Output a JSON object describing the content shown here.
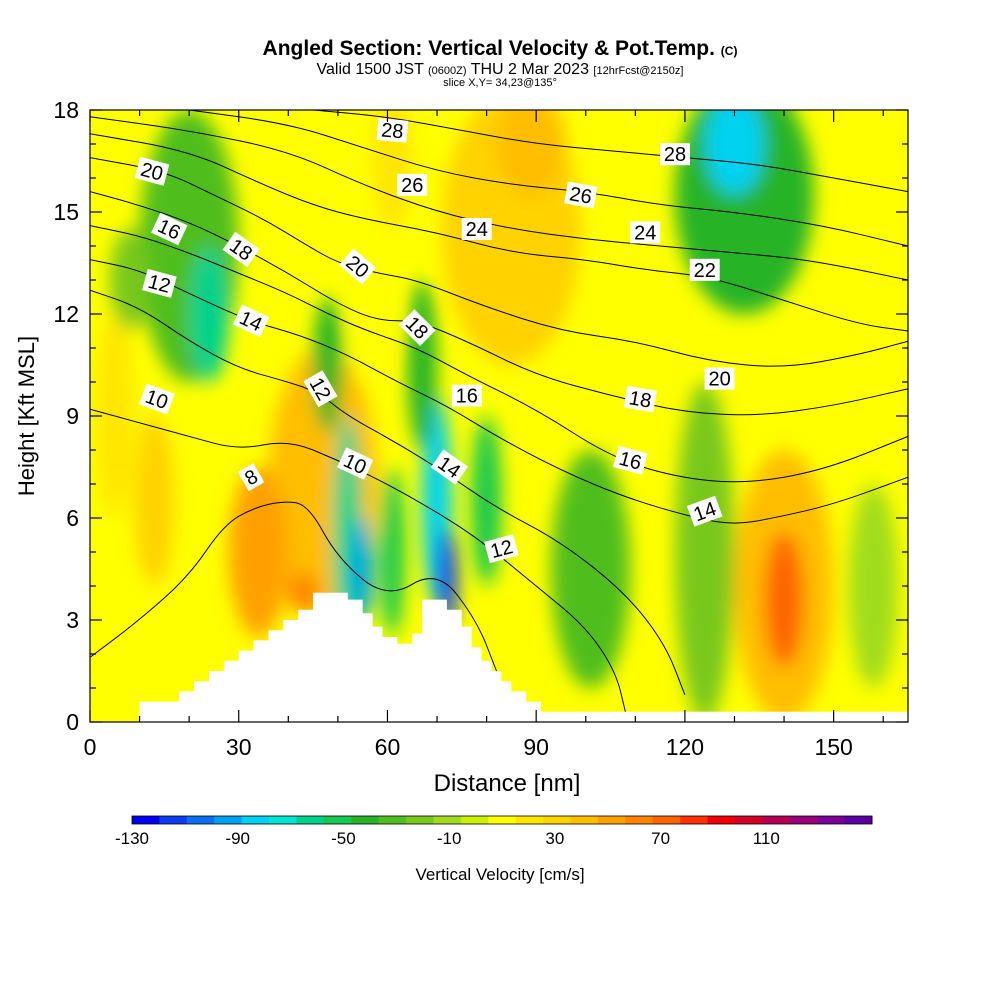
{
  "header": {
    "title_main": "Angled Section: Vertical Velocity & Pot.Temp.",
    "title_copyright": "(C)",
    "valid_prefix": "Valid 1500 JST",
    "valid_utc": "(0600Z)",
    "valid_date": "THU 2 Mar 2023",
    "valid_fcst": "[12hrFcst@2150z]",
    "slice_info": "slice X,Y= 34,23@135°"
  },
  "chart_data": {
    "type": "heatmap",
    "title": "Angled Section: Vertical Velocity & Pot.Temp.",
    "xlabel": "Distance [nm]",
    "ylabel": "Height [Kft MSL]",
    "xlim": [
      0,
      165
    ],
    "ylim": [
      0,
      18
    ],
    "x_ticks": [
      0,
      30,
      60,
      90,
      120,
      150
    ],
    "x_tick_labels": [
      "0",
      "30",
      "60",
      "90",
      "120",
      "150"
    ],
    "y_ticks": [
      0,
      3,
      6,
      9,
      12,
      15,
      18
    ],
    "y_tick_labels": [
      "0",
      "3",
      "6",
      "9",
      "12",
      "15",
      "18"
    ],
    "colorbar": {
      "label": "Vertical Velocity [cm/s]",
      "tick_labels": [
        "-130",
        "-90",
        "-50",
        "-10",
        "30",
        "70",
        "110"
      ],
      "tick_values": [
        -130,
        -90,
        -50,
        -10,
        30,
        70,
        110
      ],
      "range": [
        -130,
        150
      ],
      "colors": [
        "#0000f0",
        "#0a3cf0",
        "#0a6ef0",
        "#00a0f0",
        "#00d2f0",
        "#00e6d2",
        "#00d28c",
        "#14c850",
        "#28b428",
        "#50be1e",
        "#78c81e",
        "#a0dc1e",
        "#c8f000",
        "#ffff00",
        "#ffe600",
        "#ffd200",
        "#ffbe00",
        "#ffa000",
        "#ff8200",
        "#ff6400",
        "#ff3200",
        "#f00000",
        "#d20028",
        "#b40050",
        "#960078",
        "#780096",
        "#5a00a0"
      ]
    },
    "terrain_nm_kft": [
      [
        10,
        0.6
      ],
      [
        18,
        0.6
      ],
      [
        18,
        0.9
      ],
      [
        21,
        0.9
      ],
      [
        21,
        1.2
      ],
      [
        24,
        1.2
      ],
      [
        24,
        1.5
      ],
      [
        27,
        1.5
      ],
      [
        27,
        1.8
      ],
      [
        30,
        1.8
      ],
      [
        30,
        2.1
      ],
      [
        33,
        2.1
      ],
      [
        33,
        2.4
      ],
      [
        36,
        2.4
      ],
      [
        36,
        2.7
      ],
      [
        39,
        2.7
      ],
      [
        39,
        3.0
      ],
      [
        42,
        3.0
      ],
      [
        42,
        3.3
      ],
      [
        45,
        3.3
      ],
      [
        45,
        3.8
      ],
      [
        52,
        3.8
      ],
      [
        52,
        3.6
      ],
      [
        55,
        3.6
      ],
      [
        55,
        3.2
      ],
      [
        57,
        3.2
      ],
      [
        57,
        2.8
      ],
      [
        59,
        2.8
      ],
      [
        59,
        2.5
      ],
      [
        62,
        2.5
      ],
      [
        62,
        2.3
      ],
      [
        65,
        2.3
      ],
      [
        65,
        2.6
      ],
      [
        67,
        2.6
      ],
      [
        67,
        3.6
      ],
      [
        72,
        3.6
      ],
      [
        72,
        3.3
      ],
      [
        75,
        3.3
      ],
      [
        75,
        2.8
      ],
      [
        77,
        2.8
      ],
      [
        77,
        2.2
      ],
      [
        79,
        2.2
      ],
      [
        79,
        1.8
      ],
      [
        81,
        1.8
      ],
      [
        81,
        1.5
      ],
      [
        83,
        1.5
      ],
      [
        83,
        1.2
      ],
      [
        85,
        1.2
      ],
      [
        85,
        0.9
      ],
      [
        88,
        0.9
      ],
      [
        88,
        0.6
      ],
      [
        91,
        0.6
      ],
      [
        91,
        0.3
      ],
      [
        165,
        0.3
      ]
    ],
    "velocity_cells": [
      {
        "x": 47,
        "y": 7.0,
        "rx": 11,
        "ry": 4.0,
        "value": 40
      },
      {
        "x": 34,
        "y": 5.0,
        "rx": 6,
        "ry": 2.5,
        "value": 50
      },
      {
        "x": 13,
        "y": 6.5,
        "rx": 4,
        "ry": 2.5,
        "value": 30
      },
      {
        "x": 20,
        "y": 14.0,
        "rx": 10,
        "ry": 4.0,
        "value": -30
      },
      {
        "x": 24,
        "y": 12.0,
        "rx": 4,
        "ry": 2.0,
        "value": -60
      },
      {
        "x": 8,
        "y": 13.0,
        "rx": 4,
        "ry": 1.5,
        "value": -20
      },
      {
        "x": 48,
        "y": 10.5,
        "rx": 3,
        "ry": 2.0,
        "value": -40
      },
      {
        "x": 52,
        "y": 5.5,
        "rx": 3,
        "ry": 3.5,
        "value": -60
      },
      {
        "x": 55,
        "y": 4.5,
        "rx": 2,
        "ry": 1.5,
        "value": -90
      },
      {
        "x": 61,
        "y": 5.0,
        "rx": 2.5,
        "ry": 2.5,
        "value": -50
      },
      {
        "x": 70,
        "y": 6.5,
        "rx": 3,
        "ry": 3.0,
        "value": -80
      },
      {
        "x": 72,
        "y": 4.2,
        "rx": 2,
        "ry": 1.5,
        "value": -110
      },
      {
        "x": 80,
        "y": 6.5,
        "rx": 3,
        "ry": 2.5,
        "value": -50
      },
      {
        "x": 67,
        "y": 10.5,
        "rx": 3,
        "ry": 2.5,
        "value": -40
      },
      {
        "x": 61,
        "y": 16.5,
        "rx": 4,
        "ry": 2.0,
        "value": 20
      },
      {
        "x": 57,
        "y": 12.0,
        "rx": 4,
        "ry": 2.0,
        "value": 10
      },
      {
        "x": 85,
        "y": 14.5,
        "rx": 14,
        "ry": 4.0,
        "value": 30
      },
      {
        "x": 89,
        "y": 17.0,
        "rx": 7,
        "ry": 1.5,
        "value": 40
      },
      {
        "x": 101,
        "y": 4.5,
        "rx": 8,
        "ry": 3.5,
        "value": -30
      },
      {
        "x": 124,
        "y": 5.0,
        "rx": 6,
        "ry": 5.0,
        "value": -20
      },
      {
        "x": 132,
        "y": 15.5,
        "rx": 14,
        "ry": 3.5,
        "value": -40
      },
      {
        "x": 130,
        "y": 17.0,
        "rx": 6,
        "ry": 1.5,
        "value": -80
      },
      {
        "x": 140,
        "y": 4.0,
        "rx": 10,
        "ry": 4.0,
        "value": 40
      },
      {
        "x": 140,
        "y": 3.6,
        "rx": 4,
        "ry": 2.0,
        "value": 70
      },
      {
        "x": 158,
        "y": 4.0,
        "rx": 5,
        "ry": 3.0,
        "value": -10
      },
      {
        "x": 160,
        "y": 12.0,
        "rx": 5,
        "ry": 4.0,
        "value": 10
      },
      {
        "x": 5,
        "y": 9.0,
        "rx": 4,
        "ry": 3.0,
        "value": 20
      },
      {
        "x": 43,
        "y": 3.8,
        "rx": 3,
        "ry": 0.6,
        "value": 60
      }
    ],
    "isentropes": [
      {
        "theta": 8,
        "points": [
          [
            0,
            1.9
          ],
          [
            10,
            3.0
          ],
          [
            20,
            4.3
          ],
          [
            27,
            5.8
          ],
          [
            33,
            6.3
          ],
          [
            39,
            6.5
          ],
          [
            44,
            6.4
          ],
          [
            50,
            4.8
          ],
          [
            60,
            3.6
          ],
          [
            70,
            4.5
          ],
          [
            78,
            3.0
          ],
          [
            82,
            1.5
          ]
        ]
      },
      {
        "theta": 10,
        "points": [
          [
            0,
            9.2
          ],
          [
            10,
            8.8
          ],
          [
            20,
            8.4
          ],
          [
            30,
            8.0
          ],
          [
            40,
            8.3
          ],
          [
            50,
            7.7
          ],
          [
            60,
            7.0
          ],
          [
            72,
            6.0
          ],
          [
            80,
            5.2
          ],
          [
            90,
            4.0
          ],
          [
            100,
            2.8
          ],
          [
            106,
            1.5
          ],
          [
            108,
            0.3
          ]
        ]
      },
      {
        "theta": 12,
        "points": [
          [
            0,
            12.7
          ],
          [
            10,
            12.2
          ],
          [
            20,
            11.2
          ],
          [
            30,
            10.4
          ],
          [
            40,
            10.0
          ],
          [
            46,
            9.7
          ],
          [
            52,
            9.0
          ],
          [
            62,
            8.2
          ],
          [
            72,
            7.3
          ],
          [
            82,
            6.3
          ],
          [
            95,
            5.3
          ],
          [
            108,
            3.8
          ],
          [
            116,
            2.3
          ],
          [
            120,
            0.8
          ]
        ]
      },
      {
        "theta": 14,
        "points": [
          [
            0,
            13.6
          ],
          [
            10,
            13.3
          ],
          [
            20,
            12.6
          ],
          [
            32,
            11.8
          ],
          [
            42,
            11.4
          ],
          [
            52,
            10.8
          ],
          [
            62,
            10.0
          ],
          [
            72,
            9.3
          ],
          [
            82,
            8.4
          ],
          [
            95,
            7.4
          ],
          [
            108,
            6.6
          ],
          [
            122,
            6.0
          ],
          [
            130,
            5.8
          ],
          [
            138,
            6.0
          ],
          [
            150,
            6.4
          ],
          [
            165,
            7.2
          ]
        ]
      },
      {
        "theta": 16,
        "points": [
          [
            0,
            14.6
          ],
          [
            10,
            14.3
          ],
          [
            20,
            13.8
          ],
          [
            30,
            13.2
          ],
          [
            40,
            12.6
          ],
          [
            48,
            12.0
          ],
          [
            56,
            11.5
          ],
          [
            66,
            11.0
          ],
          [
            76,
            10.2
          ],
          [
            90,
            9.2
          ],
          [
            105,
            7.8
          ],
          [
            118,
            7.2
          ],
          [
            132,
            7.0
          ],
          [
            148,
            7.4
          ],
          [
            165,
            8.4
          ]
        ]
      },
      {
        "theta": 18,
        "points": [
          [
            0,
            15.6
          ],
          [
            10,
            15.2
          ],
          [
            20,
            14.7
          ],
          [
            30,
            14.0
          ],
          [
            40,
            13.2
          ],
          [
            50,
            12.3
          ],
          [
            58,
            11.8
          ],
          [
            66,
            11.8
          ],
          [
            76,
            11.2
          ],
          [
            90,
            10.2
          ],
          [
            105,
            9.6
          ],
          [
            120,
            9.1
          ],
          [
            135,
            9.0
          ],
          [
            150,
            9.3
          ],
          [
            165,
            9.8
          ]
        ]
      },
      {
        "theta": 20,
        "points": [
          [
            0,
            16.6
          ],
          [
            15,
            16.2
          ],
          [
            25,
            15.5
          ],
          [
            35,
            14.8
          ],
          [
            44,
            14.0
          ],
          [
            50,
            13.5
          ],
          [
            58,
            13.2
          ],
          [
            66,
            13.0
          ],
          [
            80,
            12.2
          ],
          [
            95,
            11.5
          ],
          [
            110,
            11.2
          ],
          [
            125,
            10.6
          ],
          [
            140,
            10.4
          ],
          [
            155,
            10.8
          ],
          [
            165,
            11.2
          ]
        ]
      },
      {
        "theta": 22,
        "points": [
          [
            0,
            17.3
          ],
          [
            20,
            16.8
          ],
          [
            35,
            15.8
          ],
          [
            45,
            15.2
          ],
          [
            55,
            14.8
          ],
          [
            70,
            14.4
          ],
          [
            85,
            13.8
          ],
          [
            100,
            13.6
          ],
          [
            112,
            13.3
          ],
          [
            125,
            13.1
          ],
          [
            140,
            12.4
          ],
          [
            155,
            11.7
          ],
          [
            165,
            11.5
          ]
        ]
      },
      {
        "theta": 24,
        "points": [
          [
            0,
            17.8
          ],
          [
            20,
            17.4
          ],
          [
            40,
            16.8
          ],
          [
            55,
            15.8
          ],
          [
            70,
            15.0
          ],
          [
            85,
            14.5
          ],
          [
            100,
            14.2
          ],
          [
            115,
            14.0
          ],
          [
            130,
            13.8
          ],
          [
            145,
            13.6
          ],
          [
            165,
            13.0
          ]
        ]
      },
      {
        "theta": 26,
        "points": [
          [
            20,
            18.0
          ],
          [
            40,
            17.6
          ],
          [
            55,
            16.9
          ],
          [
            70,
            16.2
          ],
          [
            85,
            15.8
          ],
          [
            100,
            15.6
          ],
          [
            115,
            15.2
          ],
          [
            130,
            15.0
          ],
          [
            148,
            14.6
          ],
          [
            165,
            14.0
          ]
        ]
      },
      {
        "theta": 28,
        "points": [
          [
            45,
            18.0
          ],
          [
            60,
            17.8
          ],
          [
            75,
            17.4
          ],
          [
            90,
            17.0
          ],
          [
            105,
            16.8
          ],
          [
            120,
            16.6
          ],
          [
            135,
            16.4
          ],
          [
            150,
            16.0
          ],
          [
            165,
            15.6
          ]
        ]
      }
    ],
    "contour_labels": [
      {
        "text": "20",
        "x": 12.5,
        "y": 16.2,
        "angle": 15
      },
      {
        "text": "16",
        "x": 16,
        "y": 14.5,
        "angle": 25
      },
      {
        "text": "18",
        "x": 30.5,
        "y": 13.9,
        "angle": 35
      },
      {
        "text": "12",
        "x": 14,
        "y": 12.9,
        "angle": 15
      },
      {
        "text": "14",
        "x": 32.5,
        "y": 11.8,
        "angle": 25
      },
      {
        "text": "20",
        "x": 54,
        "y": 13.4,
        "angle": 40
      },
      {
        "text": "10",
        "x": 13.5,
        "y": 9.5,
        "angle": 20
      },
      {
        "text": "12",
        "x": 46.5,
        "y": 9.8,
        "angle": 60
      },
      {
        "text": "8",
        "x": 32.5,
        "y": 7.2,
        "angle": -30
      },
      {
        "text": "10",
        "x": 53.5,
        "y": 7.6,
        "angle": 25
      },
      {
        "text": "18",
        "x": 66,
        "y": 11.6,
        "angle": 45
      },
      {
        "text": "28",
        "x": 61,
        "y": 17.4,
        "angle": 5
      },
      {
        "text": "26",
        "x": 65,
        "y": 15.8,
        "angle": 0
      },
      {
        "text": "24",
        "x": 78,
        "y": 14.5,
        "angle": 0
      },
      {
        "text": "16",
        "x": 76,
        "y": 9.6,
        "angle": 0
      },
      {
        "text": "14",
        "x": 72.5,
        "y": 7.5,
        "angle": 35
      },
      {
        "text": "12",
        "x": 83,
        "y": 5.1,
        "angle": -15
      },
      {
        "text": "26",
        "x": 99,
        "y": 15.5,
        "angle": 10
      },
      {
        "text": "24",
        "x": 112,
        "y": 14.4,
        "angle": 0
      },
      {
        "text": "18",
        "x": 111,
        "y": 9.5,
        "angle": 10
      },
      {
        "text": "16",
        "x": 109,
        "y": 7.7,
        "angle": 15
      },
      {
        "text": "14",
        "x": 124,
        "y": 6.2,
        "angle": -20
      },
      {
        "text": "28",
        "x": 118,
        "y": 16.7,
        "angle": 0
      },
      {
        "text": "22",
        "x": 124,
        "y": 13.3,
        "angle": 0
      },
      {
        "text": "20",
        "x": 127,
        "y": 10.1,
        "angle": 0
      }
    ]
  }
}
